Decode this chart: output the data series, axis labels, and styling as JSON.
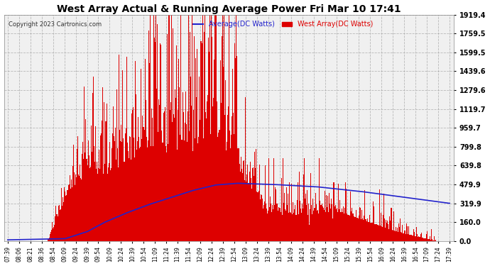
{
  "title": "West Array Actual & Running Average Power Fri Mar 10 17:41",
  "copyright": "Copyright 2023 Cartronics.com",
  "legend_avg": "Average(DC Watts)",
  "legend_west": "West Array(DC Watts)",
  "yticks": [
    0.0,
    160.0,
    319.9,
    479.9,
    639.8,
    799.8,
    959.7,
    1119.7,
    1279.6,
    1439.6,
    1599.5,
    1759.5,
    1919.4
  ],
  "ymax": 1919.4,
  "ymin": 0.0,
  "bg_color": "#ffffff",
  "plot_bg_color": "#f0f0f0",
  "title_color": "#000000",
  "grid_color": "#aaaaaa",
  "west_color": "#dd0000",
  "avg_color": "#2222cc",
  "copyright_color": "#333333",
  "xtick_labels": [
    "07:39",
    "08:06",
    "08:21",
    "08:36",
    "08:54",
    "09:09",
    "09:24",
    "09:39",
    "09:54",
    "10:09",
    "10:24",
    "10:39",
    "10:54",
    "11:09",
    "11:24",
    "11:39",
    "11:54",
    "12:09",
    "12:24",
    "12:39",
    "12:54",
    "13:09",
    "13:24",
    "13:39",
    "13:54",
    "14:09",
    "14:24",
    "14:39",
    "14:54",
    "15:09",
    "15:24",
    "15:39",
    "15:54",
    "16:09",
    "16:24",
    "16:39",
    "16:54",
    "17:09",
    "17:24",
    "17:39"
  ],
  "avg_x": [
    0.0,
    0.13,
    0.18,
    0.22,
    0.27,
    0.32,
    0.37,
    0.42,
    0.47,
    0.52,
    0.6,
    0.7,
    0.8,
    0.9,
    1.0
  ],
  "avg_y": [
    10,
    20,
    80,
    160,
    240,
    310,
    370,
    430,
    475,
    490,
    480,
    460,
    420,
    370,
    320
  ]
}
